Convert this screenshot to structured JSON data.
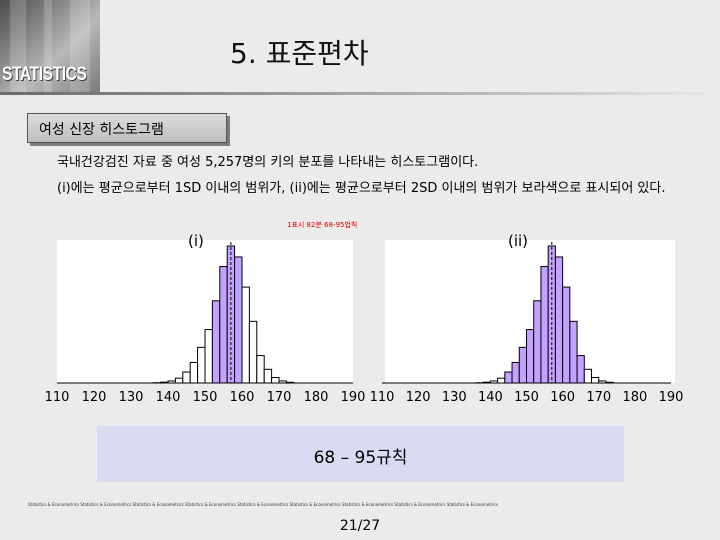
{
  "header": {
    "logo_text": "STATISTICS",
    "title": "5. 표준편차"
  },
  "section": {
    "tab_label": "여성 신장 히스토그램"
  },
  "body": {
    "line1": "국내건강검진 자료 중 여성 5,257명의 키의 분포를 나타내는 히스토그램이다.",
    "line2": "(i)에는 평균으로부터 1SD 이내의 범위가, (ii)에는 평균으로부터 2SD 이내의 범위가 보라색으로 표시되어 있다.",
    "red_note": "1표시 82분 68-95법칙"
  },
  "colors": {
    "bar_fill": "#ffffff",
    "bar_highlight": "#c4a1ff",
    "bar_stroke": "#000000",
    "rule_box": "#d9dbf2",
    "background": "#ebebeb"
  },
  "chart_data": [
    {
      "type": "bar",
      "label": "(i)",
      "x": [
        136,
        138,
        140,
        142,
        144,
        146,
        148,
        150,
        152,
        154,
        156,
        158,
        160,
        162,
        164,
        166,
        168,
        170,
        172
      ],
      "values": [
        0.2,
        0.6,
        1.5,
        3.5,
        8,
        15,
        26,
        39,
        60,
        85,
        100,
        92,
        70,
        45,
        20,
        10,
        4,
        1.5,
        0.5
      ],
      "highlight_range": [
        152,
        160
      ],
      "xlim": [
        110,
        190
      ],
      "xticks": [
        "110",
        "120",
        "130",
        "140",
        "150",
        "160",
        "170",
        "180",
        "190"
      ]
    },
    {
      "type": "bar",
      "label": "(ii)",
      "x": [
        136,
        138,
        140,
        142,
        144,
        146,
        148,
        150,
        152,
        154,
        156,
        158,
        160,
        162,
        164,
        166,
        168,
        170,
        172
      ],
      "values": [
        0.2,
        0.6,
        1.5,
        3.5,
        8,
        15,
        26,
        39,
        60,
        85,
        100,
        92,
        70,
        45,
        20,
        10,
        4,
        1.5,
        0.5
      ],
      "highlight_range": [
        144,
        166
      ],
      "xlim": [
        110,
        190
      ],
      "xticks": [
        "110",
        "120",
        "130",
        "140",
        "150",
        "160",
        "170",
        "180",
        "190"
      ]
    }
  ],
  "rule_box": {
    "text": "68 – 95규칙"
  },
  "footer": {
    "strip_text": "Statistics & Econometrics Statistics & Econometrics Statistics & Econometrics Statistics & Econometrics Statistics & Econometrics Statistics & Econometrics Statistics & Econometrics Statistics & Econometrics Statistics & Econometrics",
    "page_number": "21/27"
  }
}
